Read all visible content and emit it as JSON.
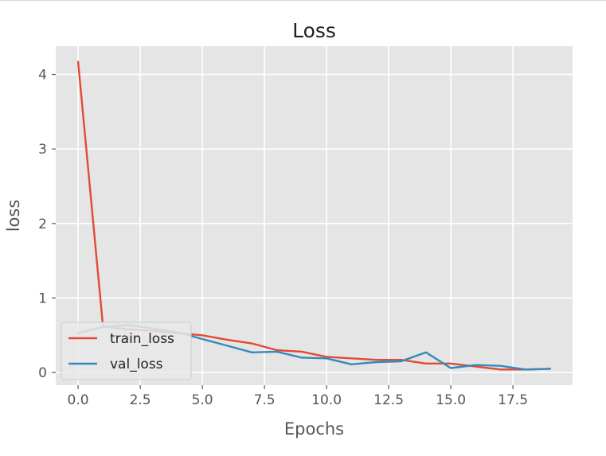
{
  "chart_data": {
    "type": "line",
    "title": "Loss",
    "xlabel": "Epochs",
    "ylabel": "loss",
    "xlim": [
      -0.9,
      19.9
    ],
    "ylim": [
      -0.17,
      4.38
    ],
    "x_ticks": [
      0,
      2.5,
      5,
      7.5,
      10,
      12.5,
      15,
      17.5
    ],
    "x_tick_labels": [
      "0.0",
      "2.5",
      "5.0",
      "7.5",
      "10.0",
      "12.5",
      "15.0",
      "17.5"
    ],
    "y_ticks": [
      0,
      1,
      2,
      3,
      4
    ],
    "y_tick_labels": [
      "0",
      "1",
      "2",
      "3",
      "4"
    ],
    "x": [
      0,
      1,
      2,
      3,
      4,
      5,
      6,
      7,
      8,
      9,
      10,
      11,
      12,
      13,
      14,
      15,
      16,
      17,
      18,
      19
    ],
    "series": [
      {
        "name": "train_loss",
        "color": "#e24a33",
        "values": [
          4.17,
          0.62,
          0.58,
          0.56,
          0.53,
          0.5,
          0.44,
          0.39,
          0.3,
          0.28,
          0.21,
          0.19,
          0.17,
          0.17,
          0.12,
          0.12,
          0.08,
          0.04,
          0.04,
          0.05
        ]
      },
      {
        "name": "val_loss",
        "color": "#348abd",
        "values": [
          0.53,
          0.61,
          0.64,
          0.59,
          0.54,
          0.45,
          0.36,
          0.27,
          0.28,
          0.2,
          0.19,
          0.11,
          0.14,
          0.15,
          0.27,
          0.06,
          0.1,
          0.09,
          0.04,
          0.05
        ]
      }
    ],
    "grid": true,
    "legend_position": "lower left",
    "background_color": "#e5e5e5",
    "grid_color": "#ffffff",
    "text_color": "#555555"
  }
}
